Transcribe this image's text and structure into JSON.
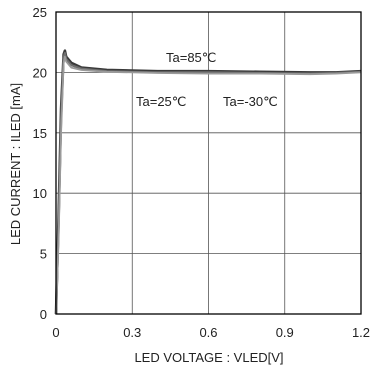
{
  "chart_data": {
    "type": "line",
    "title": "",
    "xlabel": "LED VOLTAGE : VLED[V]",
    "ylabel": "LED CURRENT : ILED [mA]",
    "xlim": [
      0,
      1.2
    ],
    "ylim": [
      0,
      25
    ],
    "grid": true,
    "x_ticks": [
      "0",
      "0.3",
      "0.6",
      "0.9",
      "1.2"
    ],
    "y_ticks": [
      "0",
      "5",
      "10",
      "15",
      "20",
      "25"
    ],
    "annotations": [
      "Ta=85℃",
      "Ta=25℃",
      "Ta=-30℃"
    ],
    "series": [
      {
        "name": "Ta=85℃",
        "x": [
          0,
          0.01,
          0.02,
          0.03,
          0.035,
          0.04,
          0.06,
          0.1,
          0.2,
          0.4,
          0.6,
          0.8,
          1.0,
          1.1,
          1.2
        ],
        "y": [
          0,
          8,
          17,
          21.5,
          21.8,
          21.3,
          20.8,
          20.4,
          20.2,
          20.1,
          20.1,
          20.05,
          20.0,
          20.0,
          20.1
        ]
      },
      {
        "name": "Ta=25℃",
        "x": [
          0,
          0.01,
          0.02,
          0.03,
          0.035,
          0.04,
          0.06,
          0.1,
          0.2,
          0.4,
          0.6,
          0.8,
          1.0,
          1.1,
          1.2
        ],
        "y": [
          0,
          7,
          16,
          21.2,
          21.6,
          21.1,
          20.6,
          20.3,
          20.1,
          20.0,
          20.0,
          19.95,
          19.9,
          19.95,
          20.05
        ]
      },
      {
        "name": "Ta=-30℃",
        "x": [
          0,
          0.01,
          0.02,
          0.03,
          0.035,
          0.04,
          0.06,
          0.1,
          0.2,
          0.4,
          0.6,
          0.8,
          1.0,
          1.1,
          1.2
        ],
        "y": [
          0,
          6,
          15,
          20.8,
          21.3,
          20.9,
          20.4,
          20.2,
          20.05,
          19.95,
          19.9,
          19.9,
          19.85,
          19.9,
          20.0
        ]
      }
    ]
  }
}
